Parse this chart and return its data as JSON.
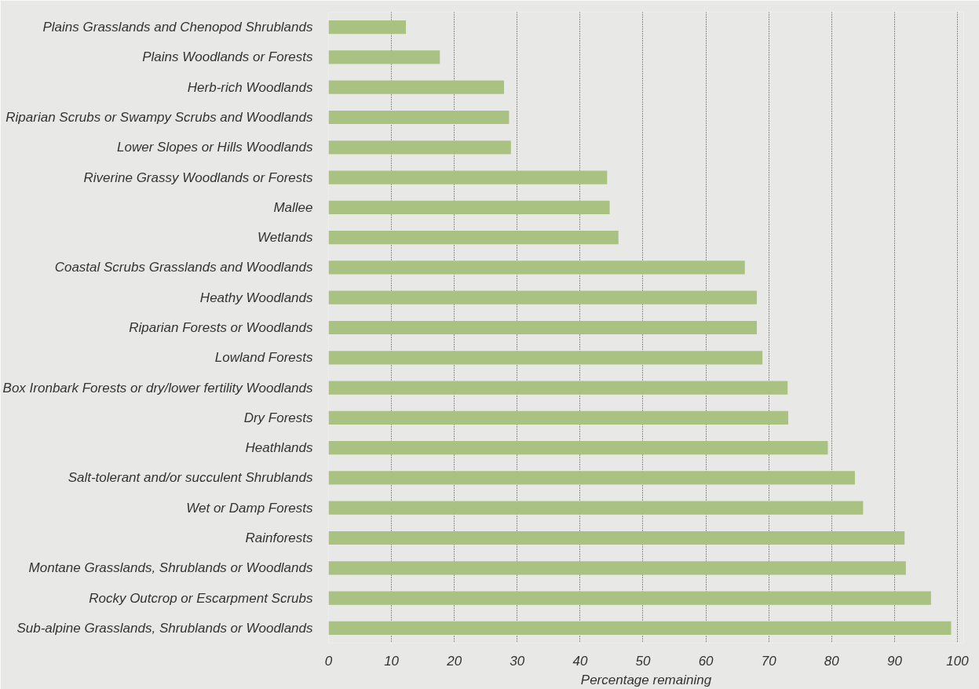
{
  "chart_data": {
    "type": "bar",
    "orientation": "horizontal",
    "xlabel": "Percentage remaining",
    "categories": [
      "Plains Grasslands and Chenopod Shrublands",
      "Plains Woodlands or Forests",
      "Herb-rich Woodlands",
      "Riparian Scrubs or Swampy Scrubs and Woodlands",
      "Lower Slopes or Hills Woodlands",
      "Riverine Grassy Woodlands or Forests",
      "Mallee",
      "Wetlands",
      "Coastal Scrubs Grasslands and Woodlands",
      "Heathy Woodlands",
      "Riparian Forests or Woodlands",
      "Lowland Forests",
      "Box Ironbark Forests or dry/lower fertility Woodlands",
      "Dry Forests",
      "Heathlands",
      "Salt-tolerant and/or succulent Shrublands",
      "Wet or Damp Forests",
      "Rainforests",
      "Montane Grasslands, Shrublands or Woodlands",
      "Rocky Outcrop or Escarpment Scrubs",
      "Sub-alpine Grasslands, Shrublands or Woodlands"
    ],
    "values": [
      12.3,
      17.7,
      27.9,
      28.7,
      29.0,
      44.3,
      44.7,
      46.1,
      66.2,
      68.1,
      68.1,
      69.0,
      73.0,
      73.1,
      79.4,
      83.7,
      85.0,
      91.6,
      91.8,
      95.8,
      99.0
    ],
    "color": "#a9c181",
    "xlim": [
      0,
      101
    ],
    "xticks": [
      0,
      10,
      20,
      30,
      40,
      50,
      60,
      70,
      80,
      90,
      100
    ],
    "grid": "x"
  }
}
